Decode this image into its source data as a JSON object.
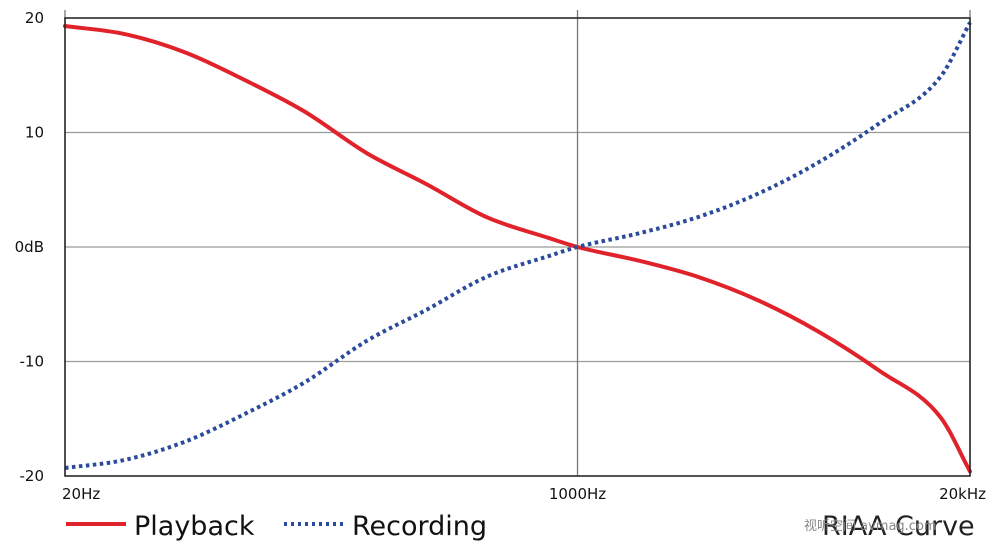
{
  "chart_data": {
    "type": "line",
    "caption": "RIAA Curve",
    "x": [
      20,
      31.5,
      50,
      80,
      125,
      200,
      315,
      500,
      800,
      1000,
      1600,
      2500,
      4000,
      6300,
      10000,
      16000,
      20000
    ],
    "xscale": "log",
    "xlim": [
      20,
      20000
    ],
    "ylim": [
      -20,
      20
    ],
    "x_ticks": [
      {
        "value": 20,
        "label": "20Hz"
      },
      {
        "value": 1000,
        "label": "1000Hz"
      },
      {
        "value": 20000,
        "label": "20kHz"
      }
    ],
    "y_ticks": [
      {
        "value": 20,
        "label": "20"
      },
      {
        "value": 10,
        "label": "10"
      },
      {
        "value": 0,
        "label": "0dB"
      },
      {
        "value": -10,
        "label": "-10"
      },
      {
        "value": -20,
        "label": "-20"
      }
    ],
    "grid": true,
    "legend_position": "bottom-left",
    "series": [
      {
        "name": "Playback",
        "color": "#e0232b",
        "style": "solid",
        "values": [
          19.3,
          18.6,
          17.0,
          14.5,
          11.8,
          8.2,
          5.5,
          2.6,
          0.8,
          0.0,
          -1.2,
          -2.6,
          -4.7,
          -7.4,
          -10.8,
          -14.9,
          -19.6
        ]
      },
      {
        "name": "Recording",
        "color": "#2a4a9b",
        "style": "dotted",
        "values": [
          -19.3,
          -18.6,
          -17.0,
          -14.5,
          -11.8,
          -8.2,
          -5.5,
          -2.6,
          -0.8,
          0.0,
          1.2,
          2.6,
          4.7,
          7.4,
          10.8,
          14.9,
          19.6
        ]
      }
    ]
  },
  "watermark": "视听空间 avmag.com"
}
